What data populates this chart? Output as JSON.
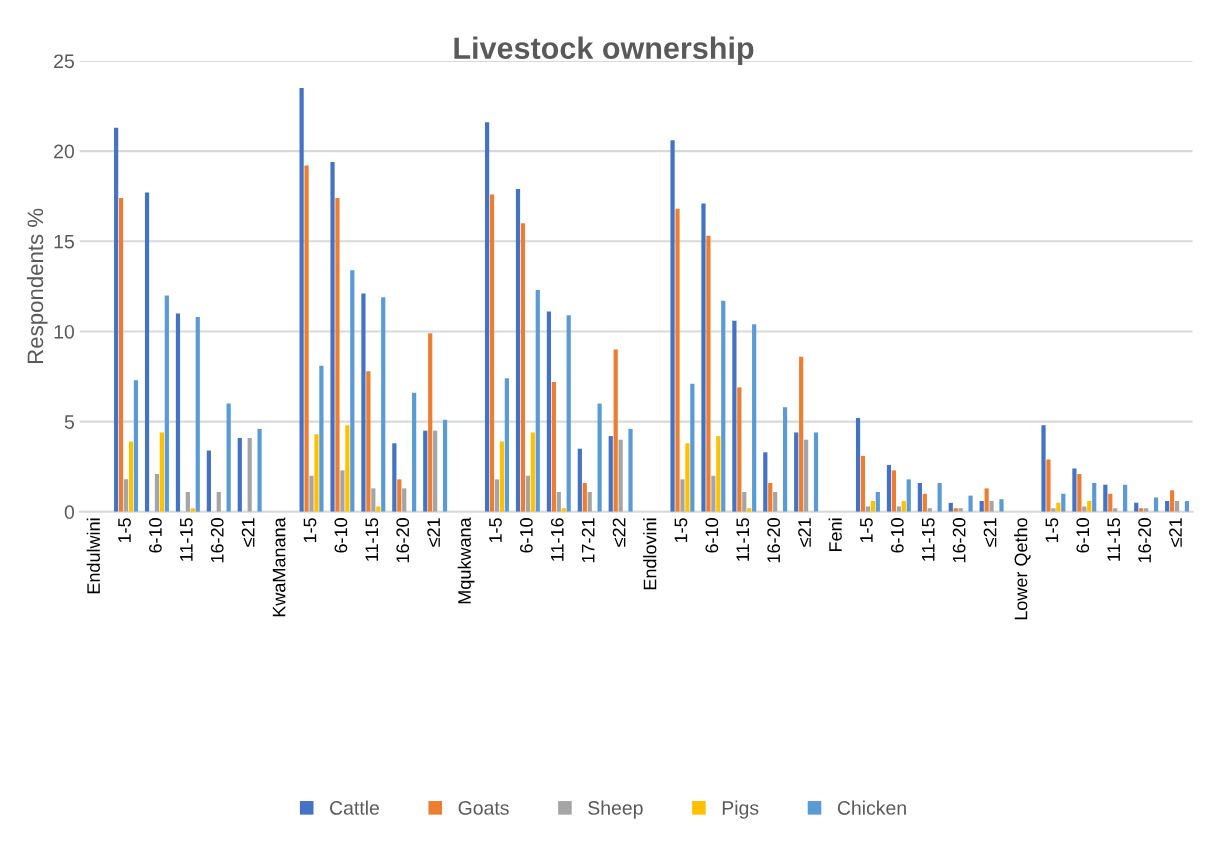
{
  "chart_data": {
    "type": "bar",
    "title": "Livestock ownership",
    "ylabel": "Respondents %",
    "categories": [
      "Endulwini",
      "1-5",
      "6-10",
      "11-15",
      "16-20",
      "≤21",
      "KwaManana",
      "1-5",
      "6-10",
      "11-15",
      "16-20",
      "≤21",
      "Mqukwana",
      "1-5",
      "6-10",
      "11-16",
      "17-21",
      "≤22",
      "Endlovini",
      "1-5",
      "6-10",
      "11-15",
      "16-20",
      "≤21",
      "Feni",
      "1-5",
      "6-10",
      "11-15",
      "16-20",
      "≤21",
      "Lower Qetho",
      "1-5",
      "6-10",
      "11-15",
      "16-20",
      "≤21"
    ],
    "series": [
      {
        "name": "Cattle",
        "color": "#4472c4",
        "values": [
          null,
          21.3,
          17.7,
          11.0,
          3.4,
          4.1,
          null,
          23.5,
          19.4,
          12.1,
          3.8,
          4.5,
          null,
          21.6,
          17.9,
          11.1,
          3.5,
          4.2,
          null,
          20.6,
          17.1,
          10.6,
          3.3,
          4.4,
          null,
          5.2,
          2.6,
          1.6,
          0.5,
          0.6,
          null,
          4.8,
          2.4,
          1.5,
          0.5,
          0.6
        ]
      },
      {
        "name": "Goats",
        "color": "#ed7d31",
        "values": [
          null,
          17.4,
          0,
          0,
          0,
          0,
          null,
          19.2,
          17.4,
          7.8,
          1.8,
          9.9,
          null,
          17.6,
          16.0,
          7.2,
          1.6,
          9.0,
          null,
          16.8,
          15.3,
          6.9,
          1.6,
          8.6,
          null,
          3.1,
          2.3,
          1.0,
          0.2,
          1.3,
          null,
          2.9,
          2.1,
          1.0,
          0.2,
          1.2
        ]
      },
      {
        "name": "Sheep",
        "color": "#a5a5a5",
        "values": [
          null,
          1.8,
          2.1,
          1.1,
          1.1,
          4.1,
          null,
          2.0,
          2.3,
          1.3,
          1.3,
          4.5,
          null,
          1.8,
          2.0,
          1.1,
          1.1,
          4.0,
          null,
          1.8,
          2.0,
          1.1,
          1.1,
          4.0,
          null,
          0.3,
          0.3,
          0.2,
          0.2,
          0.6,
          null,
          0.2,
          0.3,
          0.2,
          0.2,
          0.6
        ]
      },
      {
        "name": "Pigs",
        "color": "#ffc000",
        "values": [
          null,
          3.9,
          4.4,
          0.2,
          0,
          0,
          null,
          4.3,
          4.8,
          0.3,
          0,
          0,
          null,
          3.9,
          4.4,
          0.2,
          0,
          0,
          null,
          3.8,
          4.2,
          0.2,
          0,
          0,
          null,
          0.6,
          0.6,
          0,
          0,
          0,
          null,
          0.5,
          0.6,
          0,
          0,
          0
        ]
      },
      {
        "name": "Chicken",
        "color": "#5b9bd5",
        "values": [
          null,
          7.3,
          12.0,
          10.8,
          6.0,
          4.6,
          null,
          8.1,
          13.4,
          11.9,
          6.6,
          5.1,
          null,
          7.4,
          12.3,
          10.9,
          6.0,
          4.6,
          null,
          7.1,
          11.7,
          10.4,
          5.8,
          4.4,
          null,
          1.1,
          1.8,
          1.6,
          0.9,
          0.7,
          null,
          1.0,
          1.6,
          1.5,
          0.8,
          0.6
        ]
      }
    ],
    "ylim": [
      0,
      25
    ],
    "yticks": [
      0,
      5,
      10,
      15,
      20,
      25
    ],
    "grid": "y",
    "legend": "bottom"
  }
}
